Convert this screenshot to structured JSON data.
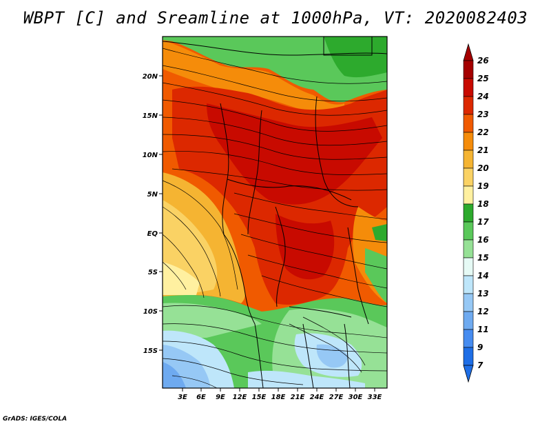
{
  "title": "WBPT [C] and Sreamline at 1000hPa, VT: 2020082403",
  "footer": "GrADS: IGES/COLA",
  "lat_labels": [
    "20N",
    "15N",
    "10N",
    "5N",
    "EQ",
    "5S",
    "10S",
    "15S"
  ],
  "lon_labels": [
    "3E",
    "6E",
    "9E",
    "12E",
    "15E",
    "18E",
    "21E",
    "24E",
    "27E",
    "30E",
    "33E"
  ],
  "colorbar": {
    "labels": [
      "26",
      "25",
      "24",
      "23",
      "22",
      "21",
      "20",
      "19",
      "18",
      "17",
      "16",
      "15",
      "14",
      "13",
      "12",
      "11",
      "9",
      "7"
    ],
    "colors": [
      "#a50000",
      "#c80a00",
      "#dc2800",
      "#f05a00",
      "#f58c0a",
      "#f5b432",
      "#fad264",
      "#fff0a0",
      "#2daa2d",
      "#5ac85a",
      "#96e196",
      "#e6faf5",
      "#bee6fa",
      "#96c8f5",
      "#6eaaf0",
      "#468cf0",
      "#1e6ee6"
    ]
  }
}
